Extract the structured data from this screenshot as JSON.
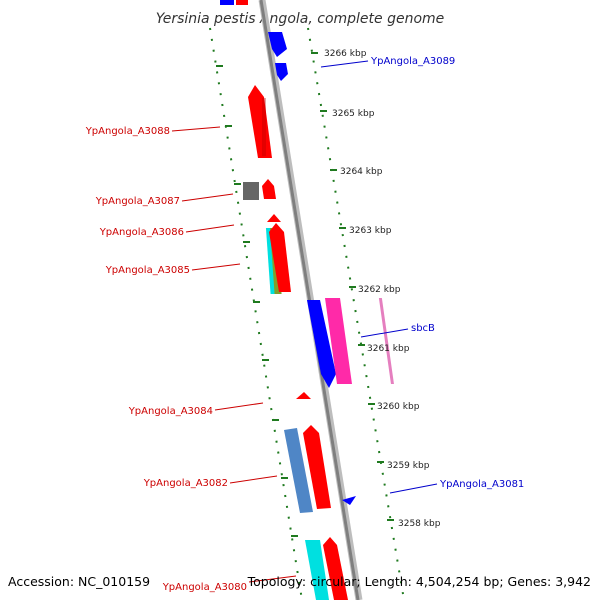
{
  "title": "Yersinia pestis Angola, complete genome",
  "footer": {
    "accession": "Accession: NC_010159",
    "topology": "Topology: circular; Length: 4,504,254 bp; Genes: 3,942"
  },
  "colors": {
    "backbone": "#8a8a8a",
    "ticks": "#1f7a1f",
    "reverse_label": "#cc0000",
    "forward_label": "#0000cc",
    "red": "#ff0000",
    "blue": "#0000ff",
    "gray": "#666666",
    "cyan": "#00e0e0",
    "olive": "#7f9f2a",
    "magenta": "#ff2aa8",
    "steelblue": "#4f86c6"
  },
  "ticks": [
    {
      "label": "3266 kbp",
      "kbp": 3266
    },
    {
      "label": "3265 kbp",
      "kbp": 3265
    },
    {
      "label": "3264 kbp",
      "kbp": 3264
    },
    {
      "label": "3263 kbp",
      "kbp": 3263
    },
    {
      "label": "3262 kbp",
      "kbp": 3262
    },
    {
      "label": "3261 kbp",
      "kbp": 3261
    },
    {
      "label": "3260 kbp",
      "kbp": 3260
    },
    {
      "label": "3259 kbp",
      "kbp": 3259
    },
    {
      "label": "3258 kbp",
      "kbp": 3258
    }
  ],
  "labels": [
    {
      "text": "YpAngola_A3089",
      "strand": "forward"
    },
    {
      "text": "YpAngola_A3088",
      "strand": "reverse"
    },
    {
      "text": "YpAngola_A3087",
      "strand": "reverse"
    },
    {
      "text": "YpAngola_A3086",
      "strand": "reverse"
    },
    {
      "text": "YpAngola_A3085",
      "strand": "reverse"
    },
    {
      "text": "sbcB",
      "strand": "forward"
    },
    {
      "text": "YpAngola_A3084",
      "strand": "reverse"
    },
    {
      "text": "YpAngola_A3082",
      "strand": "reverse"
    },
    {
      "text": "YpAngola_A3081",
      "strand": "forward"
    },
    {
      "text": "YpAngola_A3080",
      "strand": "reverse"
    }
  ]
}
